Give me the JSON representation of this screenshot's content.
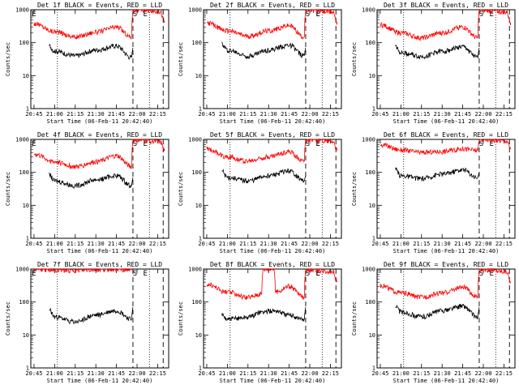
{
  "chart_data": [
    {
      "type": "line",
      "title": "Det 1f BLACK = Events, RED = LLD",
      "xlabel": "Start Time (06-Feb-11 20:42:40)",
      "ylabel": "Counts/sec",
      "x_ticks": [
        "20:45",
        "21:00",
        "21:15",
        "21:30",
        "21:45",
        "22:00",
        "22:15"
      ],
      "y_ticks": [
        "1000",
        "100",
        "10",
        "1"
      ],
      "yscale": "log",
      "ylim": [
        1,
        1000
      ],
      "markers": [
        "E",
        "S",
        "E"
      ],
      "series": [
        {
          "color": "#ff0000",
          "x": [
            "20:45",
            "21:00",
            "21:15",
            "21:30",
            "21:45",
            "21:56",
            "21:57",
            "22:17",
            "22:20"
          ],
          "values": [
            380,
            220,
            150,
            210,
            300,
            150,
            1000,
            900,
            450
          ]
        },
        {
          "color": "#000000",
          "x": [
            "20:56",
            "21:00",
            "21:15",
            "21:30",
            "21:45",
            "21:56",
            "21:57"
          ],
          "values": [
            80,
            55,
            40,
            60,
            80,
            35,
            70
          ]
        }
      ]
    },
    {
      "type": "line",
      "title": "Det 2f BLACK = Events, RED = LLD",
      "xlabel": "Start Time (06-Feb-11 20:42:40)",
      "ylabel": "Counts/sec",
      "x_ticks": [
        "20:45",
        "21:00",
        "21:15",
        "21:30",
        "21:45",
        "22:00",
        "22:15"
      ],
      "y_ticks": [
        "1000",
        "100",
        "10",
        "1"
      ],
      "yscale": "log",
      "ylim": [
        1,
        1000
      ],
      "markers": [
        "S",
        "E",
        "E"
      ],
      "series": [
        {
          "color": "#ff0000",
          "x": [
            "20:45",
            "21:00",
            "21:15",
            "21:30",
            "21:45",
            "21:56",
            "21:57",
            "22:17",
            "22:20"
          ],
          "values": [
            400,
            230,
            160,
            230,
            330,
            150,
            1000,
            850,
            400
          ]
        },
        {
          "color": "#000000",
          "x": [
            "20:56",
            "21:00",
            "21:15",
            "21:30",
            "21:45",
            "21:56",
            "21:57"
          ],
          "values": [
            90,
            60,
            40,
            60,
            85,
            40,
            70
          ]
        }
      ]
    },
    {
      "type": "line",
      "title": "Det 3f BLACK = Events, RED = LLD",
      "xlabel": "Start Time (06-Feb-11 20:42:40)",
      "ylabel": "Counts/sec",
      "x_ticks": [
        "20:45",
        "21:00",
        "21:15",
        "21:30",
        "21:45",
        "22:00",
        "22:15"
      ],
      "y_ticks": [
        "1000",
        "100",
        "10",
        "1"
      ],
      "yscale": "log",
      "ylim": [
        1,
        1000
      ],
      "markers": [
        "S",
        "E"
      ],
      "series": [
        {
          "color": "#ff0000",
          "x": [
            "20:45",
            "21:00",
            "21:15",
            "21:30",
            "21:45",
            "21:56",
            "21:57",
            "22:17",
            "22:20"
          ],
          "values": [
            350,
            200,
            140,
            200,
            300,
            140,
            1000,
            850,
            400
          ]
        },
        {
          "color": "#000000",
          "x": [
            "20:56",
            "21:00",
            "21:15",
            "21:30",
            "21:45",
            "21:56",
            "21:57"
          ],
          "values": [
            80,
            50,
            38,
            55,
            75,
            35,
            70
          ]
        }
      ]
    },
    {
      "type": "line",
      "title": "Det 4f BLACK = Events, RED = LLD",
      "xlabel": "Start Time (06-Feb-11 20:42:40)",
      "ylabel": "Counts/sec",
      "x_ticks": [
        "20:45",
        "21:00",
        "21:15",
        "21:30",
        "21:45",
        "22:00",
        "22:15"
      ],
      "y_ticks": [
        "1000",
        "100",
        "10",
        "1"
      ],
      "yscale": "log",
      "ylim": [
        1,
        1000
      ],
      "markers": [
        "E",
        "S",
        "E"
      ],
      "series": [
        {
          "color": "#ff0000",
          "x": [
            "20:45",
            "21:00",
            "21:15",
            "21:30",
            "21:45",
            "21:56",
            "21:57",
            "22:17",
            "22:20"
          ],
          "values": [
            360,
            210,
            150,
            210,
            320,
            150,
            1000,
            850,
            450
          ]
        },
        {
          "color": "#000000",
          "x": [
            "20:56",
            "21:00",
            "21:15",
            "21:30",
            "21:45",
            "21:56",
            "21:57"
          ],
          "values": [
            85,
            55,
            40,
            60,
            80,
            40,
            70
          ]
        }
      ]
    },
    {
      "type": "line",
      "title": "Det 5f BLACK = Events, RED = LLD",
      "xlabel": "Start Time (06-Feb-11 20:42:40)",
      "ylabel": "Counts/sec",
      "x_ticks": [
        "20:45",
        "21:00",
        "21:15",
        "21:30",
        "21:45",
        "22:00",
        "22:15"
      ],
      "y_ticks": [
        "1000",
        "100",
        "10",
        "1"
      ],
      "yscale": "log",
      "ylim": [
        1,
        1000
      ],
      "markers": [
        "S",
        "E",
        "E"
      ],
      "series": [
        {
          "color": "#ff0000",
          "x": [
            "20:45",
            "21:00",
            "21:15",
            "21:30",
            "21:45",
            "21:56",
            "21:57",
            "22:17",
            "22:20"
          ],
          "values": [
            520,
            300,
            220,
            300,
            420,
            220,
            1000,
            900,
            450
          ]
        },
        {
          "color": "#000000",
          "x": [
            "20:56",
            "21:00",
            "21:15",
            "21:30",
            "21:45",
            "21:56",
            "21:57"
          ],
          "values": [
            110,
            70,
            55,
            80,
            110,
            55,
            80
          ]
        }
      ]
    },
    {
      "type": "line",
      "title": "Det 6f BLACK = Events, RED = LLD",
      "xlabel": "Start Time (06-Feb-11 20:42:40)",
      "ylabel": "Counts/sec",
      "x_ticks": [
        "20:45",
        "21:00",
        "21:15",
        "21:30",
        "21:45",
        "22:00",
        "22:15"
      ],
      "y_ticks": [
        "1000",
        "100",
        "10",
        "1"
      ],
      "yscale": "log",
      "ylim": [
        1,
        1000
      ],
      "markers": [
        "S",
        "E"
      ],
      "series": [
        {
          "color": "#ff0000",
          "x": [
            "20:45",
            "21:00",
            "21:15",
            "21:30",
            "21:45",
            "21:56",
            "21:57",
            "22:17",
            "22:20"
          ],
          "values": [
            700,
            480,
            400,
            430,
            520,
            460,
            1000,
            900,
            500
          ]
        },
        {
          "color": "#000000",
          "x": [
            "20:56",
            "21:00",
            "21:15",
            "21:30",
            "21:45",
            "21:56",
            "21:57"
          ],
          "values": [
            120,
            80,
            65,
            90,
            120,
            70,
            100
          ]
        }
      ]
    },
    {
      "type": "line",
      "title": "Det 7f BLACK = Events, RED = LLD",
      "xlabel": "Start Time (06-Feb-11 20:42:40)",
      "ylabel": "Counts/sec",
      "x_ticks": [
        "20:45",
        "21:00",
        "21:15",
        "21:30",
        "21:45",
        "22:00",
        "22:15"
      ],
      "y_ticks": [
        "1000",
        "100",
        "10",
        "1"
      ],
      "yscale": "log",
      "ylim": [
        1,
        1000
      ],
      "markers": [
        "E",
        "S",
        "E"
      ],
      "series": [
        {
          "color": "#ff0000",
          "x": [
            "20:45",
            "21:00",
            "21:15",
            "21:30",
            "21:45",
            "21:56",
            "21:57"
          ],
          "values": [
            1000,
            950,
            900,
            950,
            1000,
            950,
            1000
          ]
        },
        {
          "color": "#000000",
          "x": [
            "20:56",
            "21:00",
            "21:15",
            "21:30",
            "21:45",
            "21:56",
            "21:57"
          ],
          "values": [
            60,
            35,
            25,
            40,
            55,
            30,
            70
          ]
        }
      ]
    },
    {
      "type": "line",
      "title": "Det 8f BLACK = Events, RED = LLD",
      "xlabel": "Start Time (06-Feb-11 20:42:40)",
      "ylabel": "Counts/sec",
      "x_ticks": [
        "20:45",
        "21:00",
        "21:15",
        "21:30",
        "21:45",
        "22:00",
        "22:15"
      ],
      "y_ticks": [
        "1000",
        "100",
        "10",
        "1"
      ],
      "yscale": "log",
      "ylim": [
        1,
        1000
      ],
      "markers": [
        "S",
        "E",
        "E"
      ],
      "series": [
        {
          "color": "#ff0000",
          "x": [
            "20:45",
            "21:00",
            "21:15",
            "21:25",
            "21:26",
            "21:34",
            "21:35",
            "21:45",
            "21:56",
            "21:57",
            "22:17",
            "22:20"
          ],
          "values": [
            350,
            200,
            140,
            180,
            1000,
            1000,
            200,
            300,
            140,
            1000,
            850,
            400
          ]
        },
        {
          "color": "#000000",
          "x": [
            "20:56",
            "21:00",
            "21:15",
            "21:25",
            "21:35",
            "21:45",
            "21:56",
            "21:57"
          ],
          "values": [
            40,
            30,
            35,
            50,
            55,
            40,
            30,
            70
          ]
        }
      ]
    },
    {
      "type": "line",
      "title": "Det 9f BLACK = Events, RED = LLD",
      "xlabel": "Start Time (06-Feb-11 20:42:40)",
      "ylabel": "Counts/sec",
      "x_ticks": [
        "20:45",
        "21:00",
        "21:15",
        "21:30",
        "21:45",
        "22:00",
        "22:15"
      ],
      "y_ticks": [
        "1000",
        "100",
        "10",
        "1"
      ],
      "yscale": "log",
      "ylim": [
        1,
        1000
      ],
      "markers": [
        "S",
        "E"
      ],
      "series": [
        {
          "color": "#ff0000",
          "x": [
            "20:45",
            "21:00",
            "21:15",
            "21:30",
            "21:45",
            "21:56",
            "21:57",
            "22:17",
            "22:20"
          ],
          "values": [
            320,
            190,
            140,
            190,
            280,
            140,
            1000,
            850,
            400
          ]
        },
        {
          "color": "#000000",
          "x": [
            "20:56",
            "21:00",
            "21:15",
            "21:30",
            "21:45",
            "21:56",
            "21:57"
          ],
          "values": [
            75,
            50,
            36,
            55,
            75,
            35,
            70
          ]
        }
      ]
    }
  ]
}
